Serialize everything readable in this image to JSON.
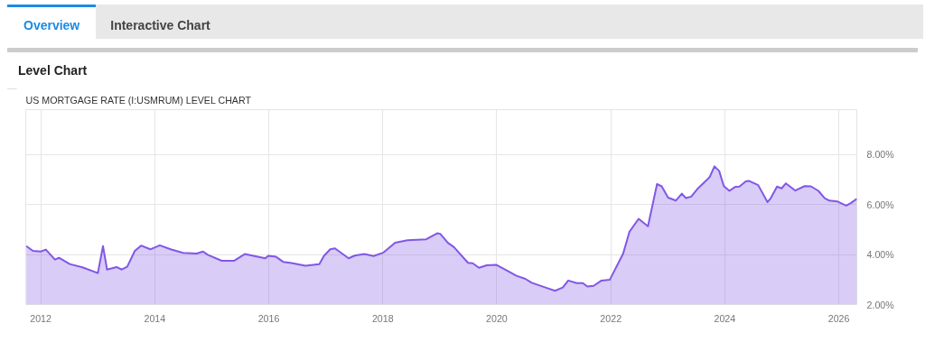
{
  "chart_data": {
    "type": "area",
    "title": "Level Chart",
    "subtitle": "US MORTGAGE RATE (I:USMRUM) LEVEL CHART",
    "annotations": [
      "Overview",
      "Interactive Chart"
    ],
    "x": [
      "2011-10-01",
      "2011-11-12",
      "2012-01-01",
      "2012-02-03",
      "2012-04-01",
      "2012-04-27",
      "2012-07-05",
      "2012-09-24",
      "2013-01-01",
      "2013-02-03",
      "2013-03-01",
      "2013-05-01",
      "2013-06-03",
      "2013-07-08",
      "2013-08-26",
      "2013-10-05",
      "2013-12-03",
      "2014-02-02",
      "2014-04-12",
      "2014-07-01",
      "2014-09-27",
      "2014-11-06",
      "2014-12-06",
      "2015-03-06",
      "2015-05-23",
      "2015-07-31",
      "2015-12-10",
      "2015-12-29",
      "2016-02-17",
      "2016-04-02",
      "2016-05-26",
      "2016-08-23",
      "2016-11-20",
      "2016-12-20",
      "2017-01-29",
      "2017-02-28",
      "2017-05-27",
      "2017-07-05",
      "2017-09-04",
      "2017-11-03",
      "2018-01-02",
      "2018-03-21",
      "2018-06-08",
      "2018-10-06",
      "2018-12-15",
      "2019-01-04",
      "2019-02-22",
      "2019-04-02",
      "2019-07-01",
      "2019-07-31",
      "2019-09-09",
      "2019-10-29",
      "2019-12-28",
      "2020-03-07",
      "2020-05-06",
      "2020-07-02",
      "2020-08-12",
      "2020-10-31",
      "2021-01-08",
      "2021-02-27",
      "2021-04-03",
      "2021-05-27",
      "2021-07-05",
      "2021-08-04",
      "2021-09-13",
      "2021-11-02",
      "2021-12-25",
      "2022-03-21",
      "2022-04-30",
      "2022-06-28",
      "2022-08-27",
      "2022-10-24",
      "2022-11-23",
      "2023-01-03",
      "2023-02-21",
      "2023-04-01",
      "2023-04-27",
      "2023-05-31",
      "2023-07-09",
      "2023-09-07",
      "2023-09-27",
      "2023-10-27",
      "2023-11-26",
      "2023-12-26",
      "2024-01-31",
      "2024-03-05",
      "2024-04-04",
      "2024-05-15",
      "2024-06-03",
      "2024-08-02",
      "2024-10-01",
      "2024-10-22",
      "2024-12-01",
      "2024-12-30",
      "2025-01-27",
      "2025-03-28",
      "2025-05-27",
      "2025-07-06",
      "2025-08-23",
      "2025-10-02",
      "2025-11-01",
      "2025-12-21",
      "2026-02-17",
      "2026-03-18",
      "2026-04-26"
    ],
    "series": [
      {
        "color": "#8257e5",
        "values": [
          4.34,
          4.15,
          4.12,
          4.2,
          3.8,
          3.87,
          3.62,
          3.49,
          3.26,
          4.34,
          3.4,
          3.5,
          3.4,
          3.51,
          4.15,
          4.36,
          4.21,
          4.37,
          4.21,
          4.07,
          4.04,
          4.12,
          3.99,
          3.75,
          3.75,
          4.02,
          3.85,
          3.95,
          3.91,
          3.71,
          3.66,
          3.55,
          3.62,
          3.95,
          4.21,
          4.25,
          3.85,
          3.96,
          4.02,
          3.94,
          4.07,
          4.47,
          4.57,
          4.61,
          4.85,
          4.83,
          4.47,
          4.3,
          3.67,
          3.65,
          3.47,
          3.57,
          3.59,
          3.36,
          3.15,
          3.03,
          2.87,
          2.7,
          2.55,
          2.68,
          2.96,
          2.86,
          2.86,
          2.72,
          2.75,
          2.96,
          2.99,
          4.04,
          4.91,
          5.43,
          5.13,
          6.82,
          6.73,
          6.28,
          6.16,
          6.44,
          6.26,
          6.32,
          6.62,
          6.98,
          7.11,
          7.53,
          7.35,
          6.74,
          6.55,
          6.7,
          6.72,
          6.93,
          6.95,
          6.78,
          6.1,
          6.26,
          6.72,
          6.65,
          6.85,
          6.56,
          6.74,
          6.73,
          6.55,
          6.26,
          6.16,
          6.13,
          5.96,
          6.06,
          6.23
        ]
      }
    ],
    "xlim": [
      "2011-09-27",
      "2026-04-26"
    ],
    "ylim": [
      2,
      9.8
    ],
    "xticks": [
      "2012",
      "2014",
      "2016",
      "2018",
      "2020",
      "2022",
      "2024",
      "2026"
    ],
    "yticks": [
      {
        "value": 2,
        "label": "2.00%"
      },
      {
        "value": 4,
        "label": "4.00%"
      },
      {
        "value": 6,
        "label": "6.00%"
      },
      {
        "value": 8,
        "label": "8.00%"
      }
    ],
    "grid": true
  }
}
